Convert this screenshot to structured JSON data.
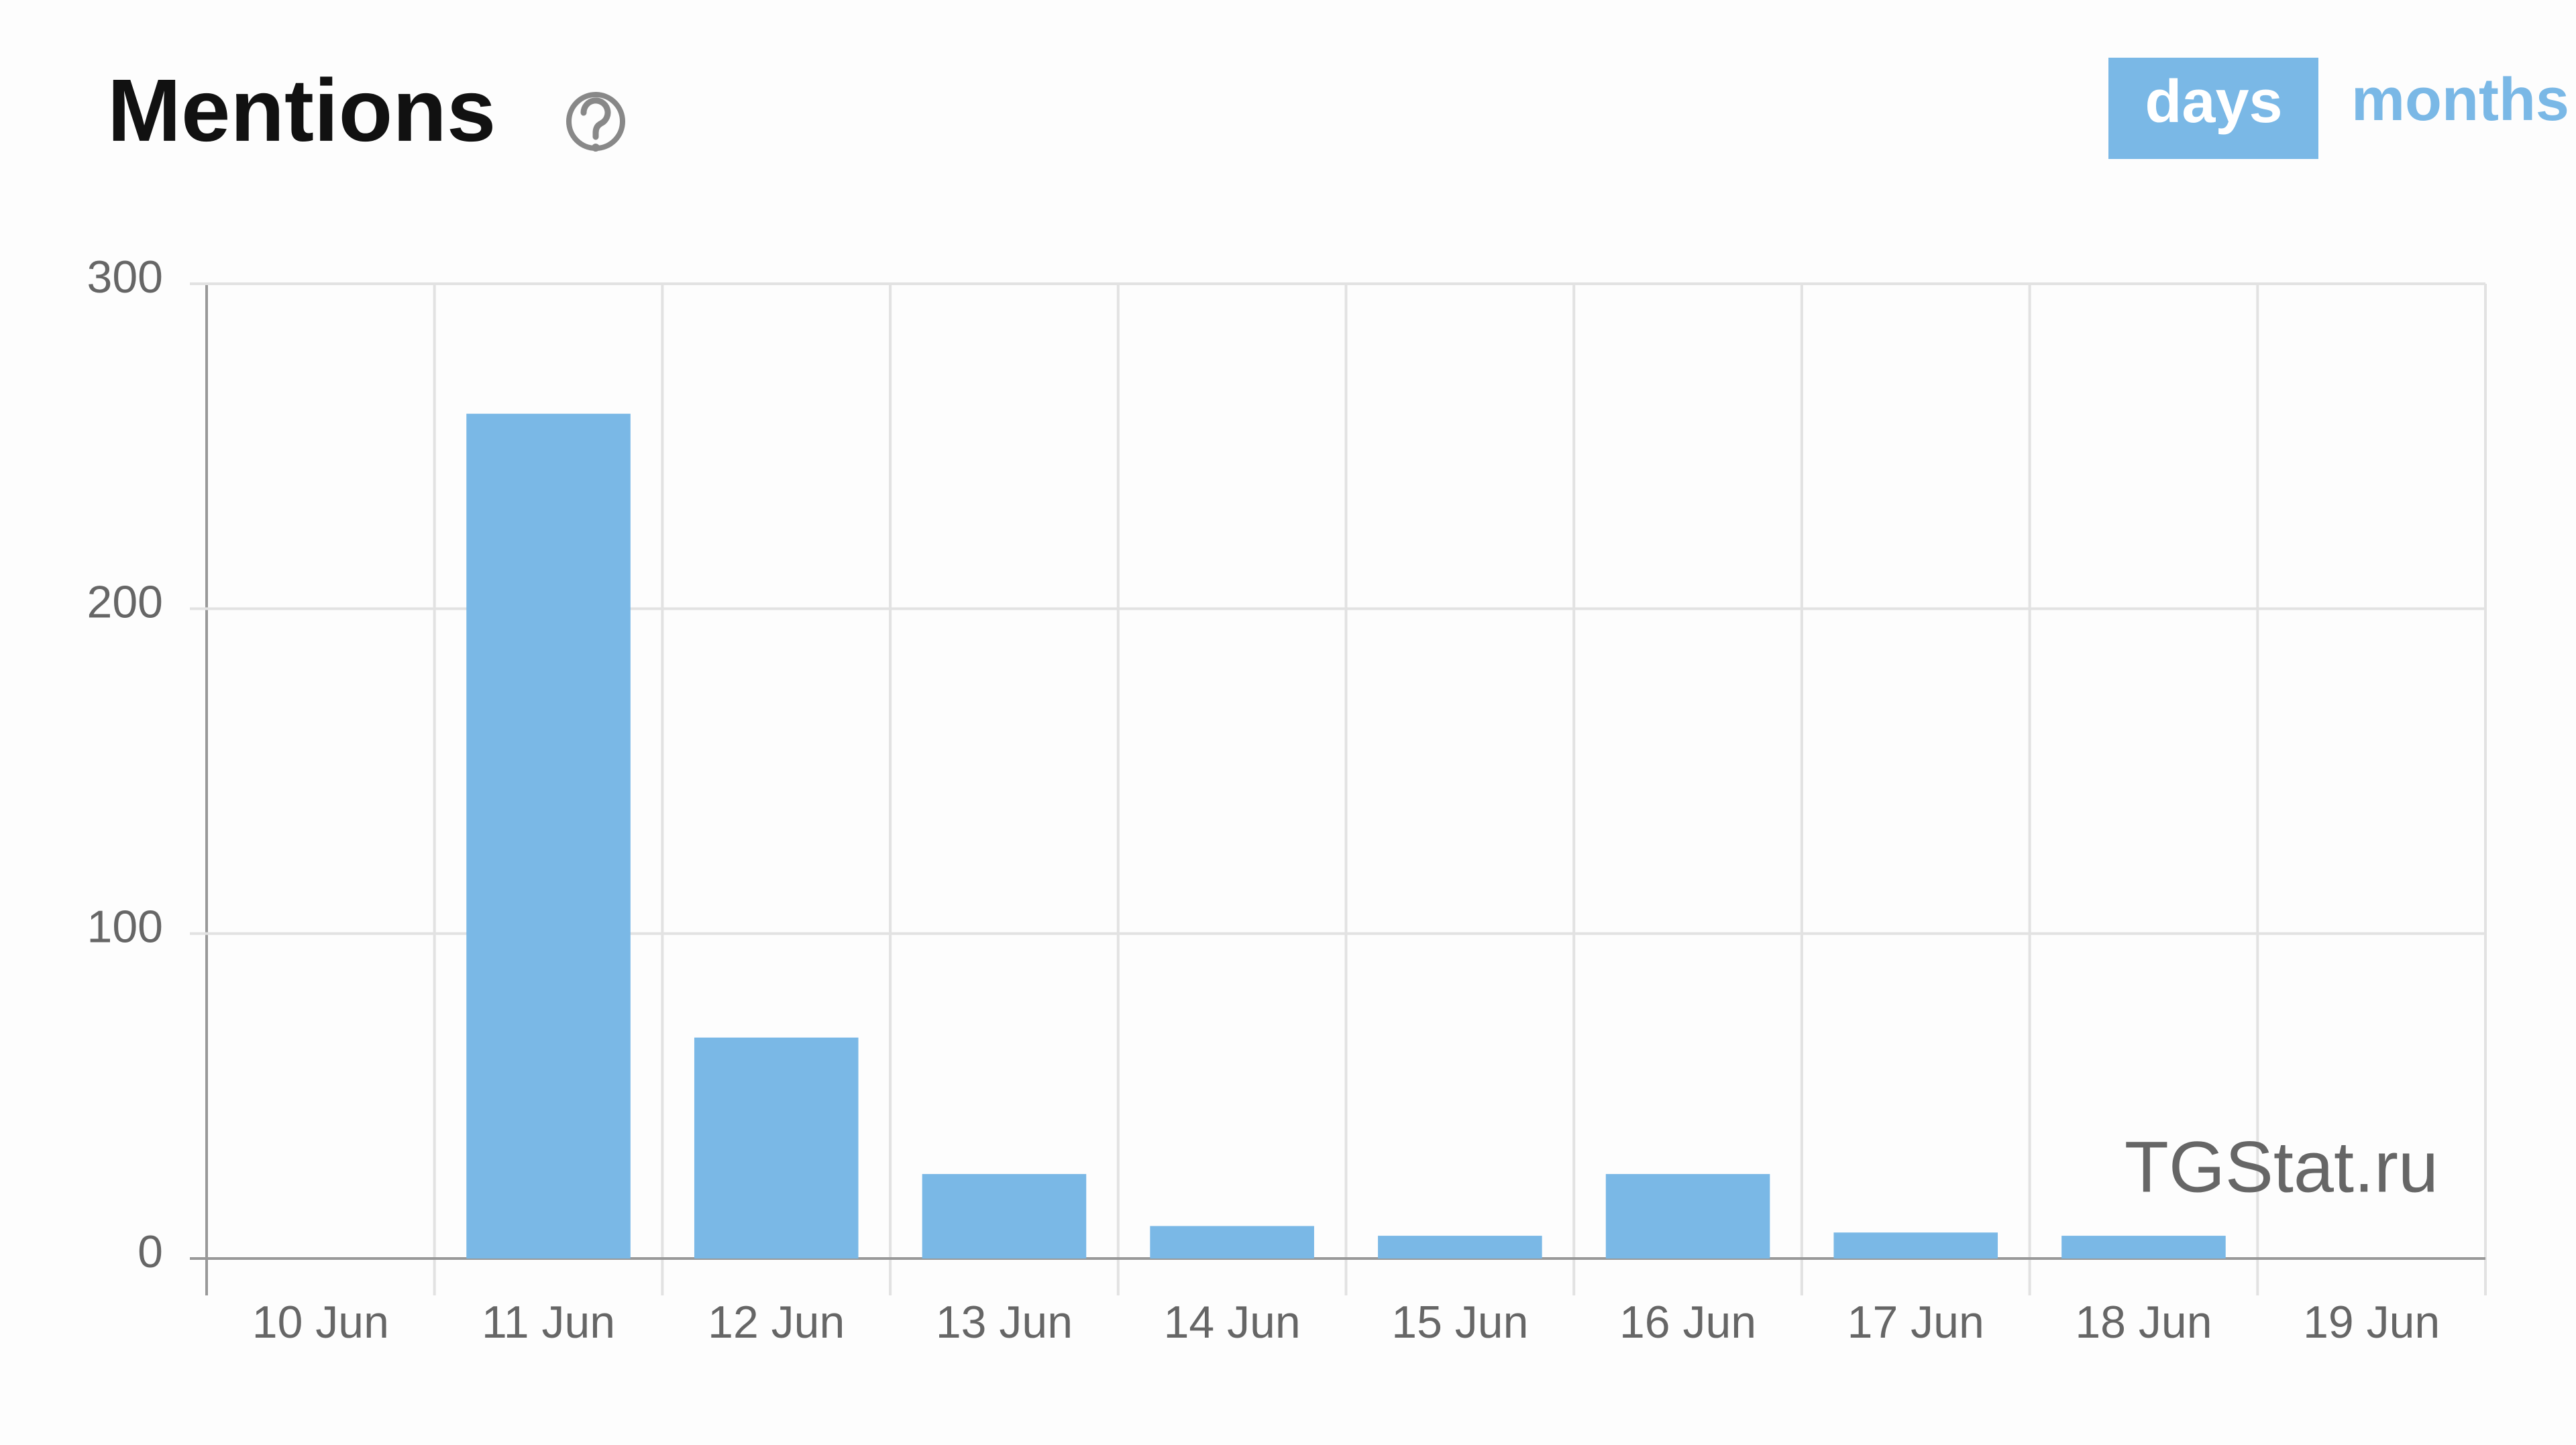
{
  "chart_data": {
    "type": "bar",
    "title": "Mentions",
    "categories": [
      "10 Jun",
      "11 Jun",
      "12 Jun",
      "13 Jun",
      "14 Jun",
      "15 Jun",
      "16 Jun",
      "17 Jun",
      "18 Jun",
      "19 Jun"
    ],
    "values": [
      0,
      260,
      68,
      26,
      10,
      7,
      26,
      8,
      7,
      0
    ],
    "color": "#7ab8e6",
    "ylim": [
      0,
      300
    ],
    "yticks": [
      0,
      100,
      200,
      300
    ],
    "grid": true,
    "watermark": "TGStat.ru"
  },
  "controls": [
    "days",
    "months"
  ]
}
